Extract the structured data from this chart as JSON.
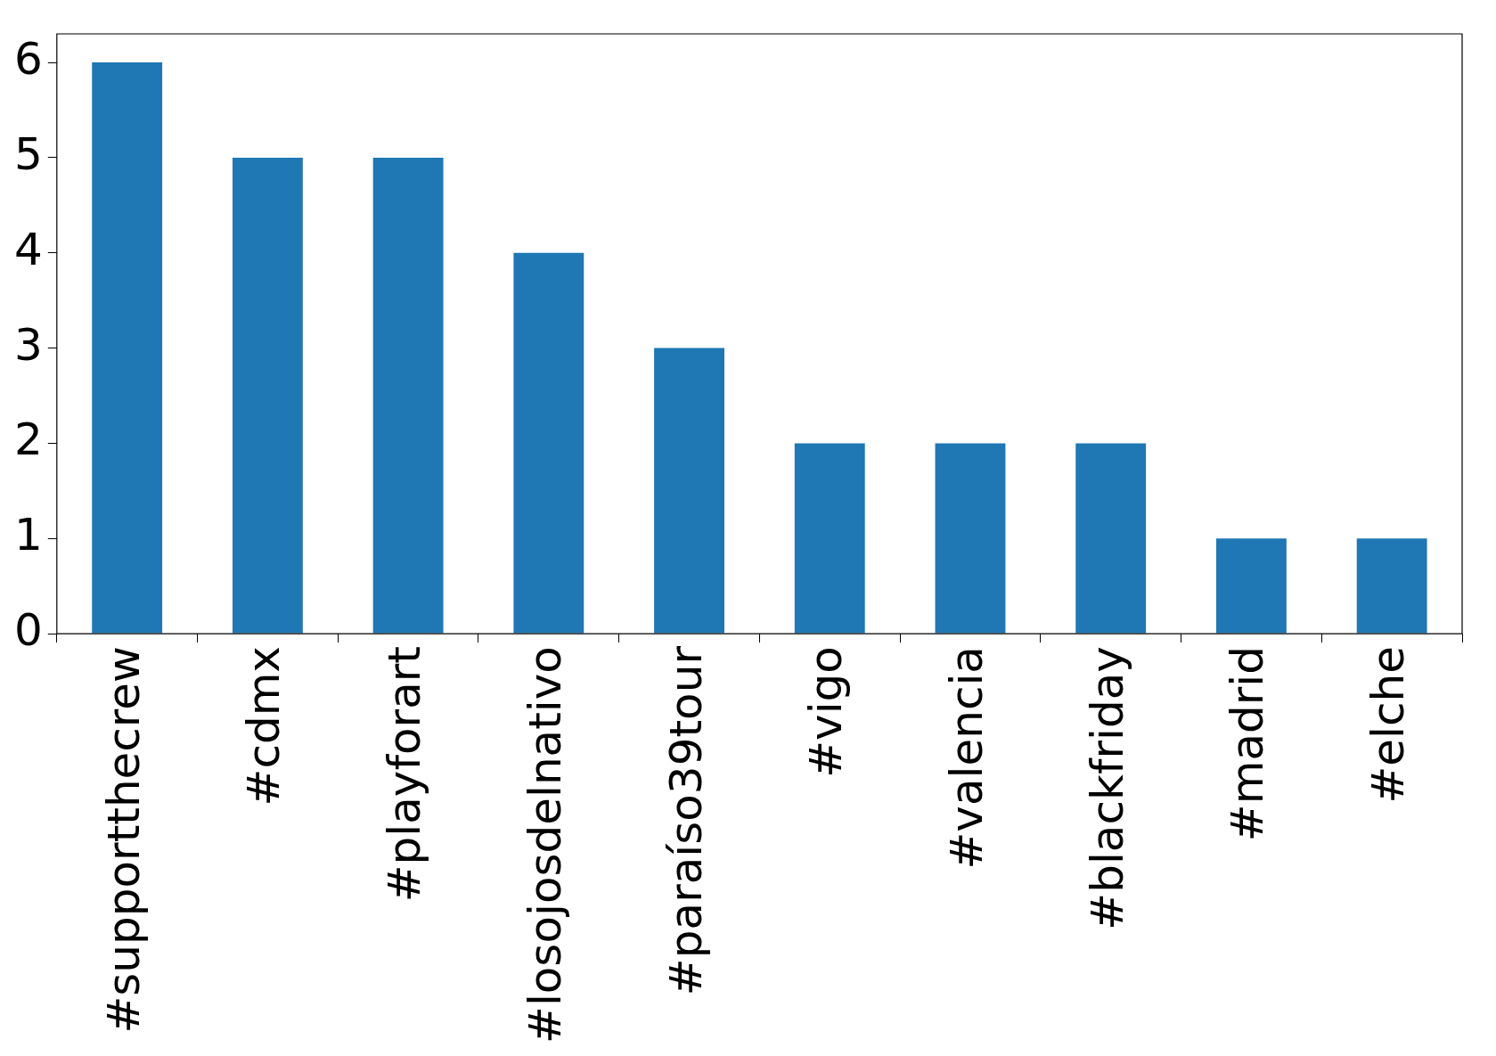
{
  "chart_data": {
    "type": "bar",
    "categories": [
      "#supportthecrew",
      "#cdmx",
      "#playforart",
      "#losojosdelnativo",
      "#paraíso39tour",
      "#vigo",
      "#valencia",
      "#blackfriday",
      "#madrid",
      "#elche"
    ],
    "values": [
      6,
      5,
      5,
      4,
      3,
      2,
      2,
      2,
      1,
      1
    ],
    "color": "#1f77b4",
    "ylim": [
      0,
      6.3
    ],
    "yticks": [
      0,
      1,
      2,
      3,
      4,
      5,
      6
    ]
  }
}
